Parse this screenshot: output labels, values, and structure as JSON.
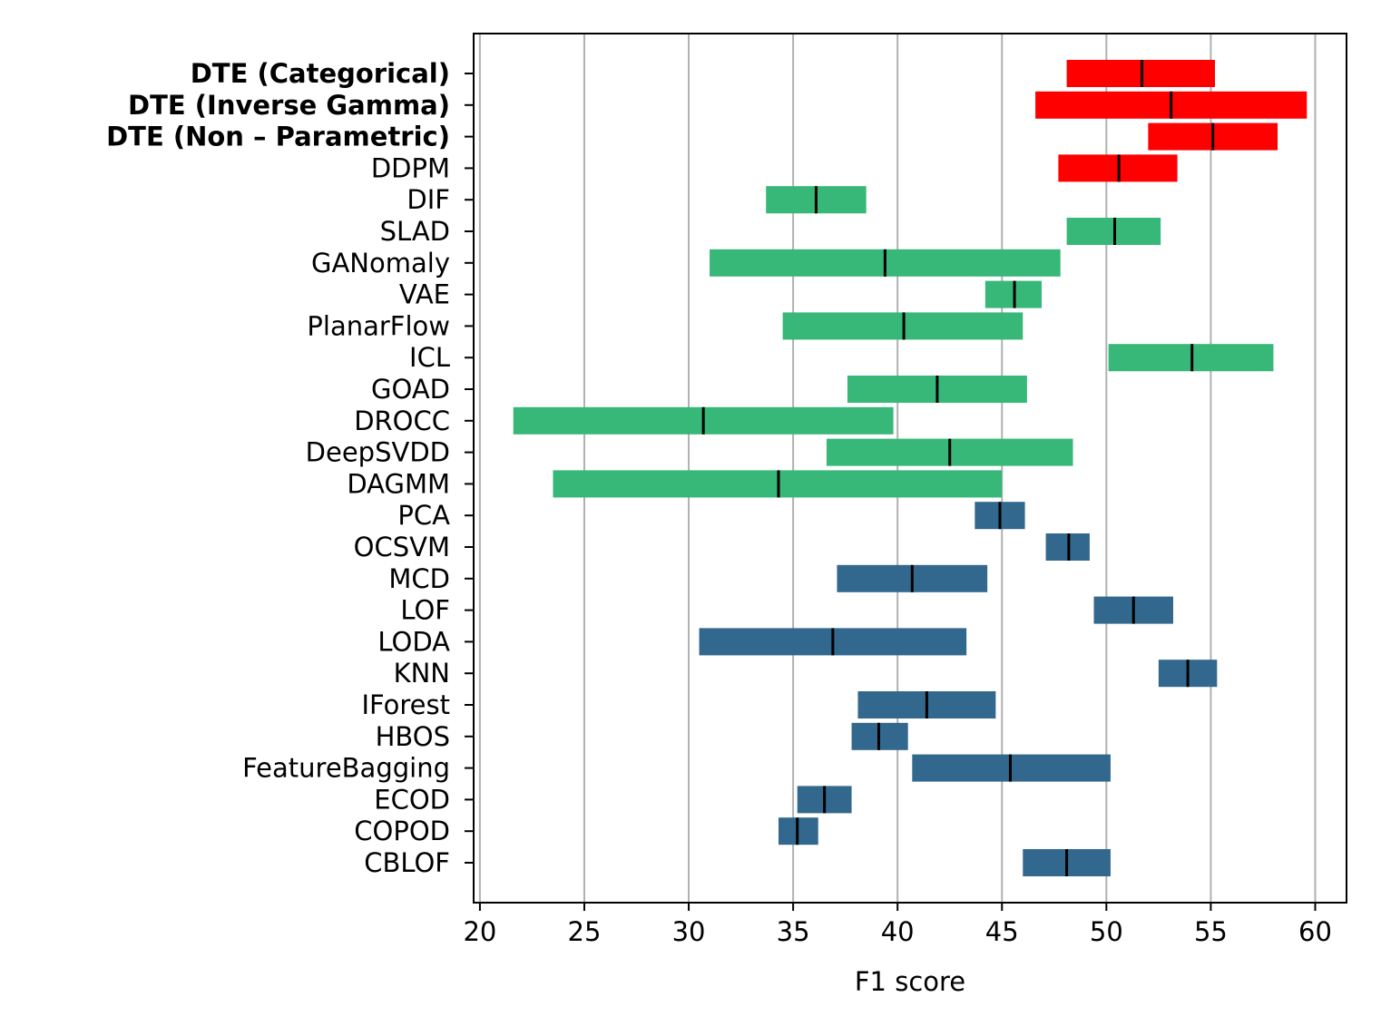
{
  "chart_data": {
    "type": "floating-bar",
    "orientation": "horizontal",
    "title": "",
    "xlabel": "F1 score",
    "ylabel": "",
    "xlim": [
      19.7,
      61.5
    ],
    "xticks": [
      20,
      25,
      30,
      35,
      40,
      45,
      50,
      55,
      60
    ],
    "grid": "vertical",
    "legend": "none",
    "colors": {
      "diffusion": "#ff0000",
      "deep": "#37b878",
      "classical": "#32688d",
      "median": "#000000",
      "grid": "#b0b0b0"
    },
    "series": [
      {
        "name": "DTE (Categorical)",
        "bold": true,
        "group": "diffusion",
        "low": 48.1,
        "high": 55.2,
        "median": 51.7
      },
      {
        "name": "DTE (Inverse Gamma)",
        "bold": true,
        "group": "diffusion",
        "low": 46.6,
        "high": 59.6,
        "median": 53.1
      },
      {
        "name": "DTE (Non – Parametric)",
        "bold": true,
        "group": "diffusion",
        "low": 52.0,
        "high": 58.2,
        "median": 55.1
      },
      {
        "name": "DDPM",
        "bold": false,
        "group": "diffusion",
        "low": 47.7,
        "high": 53.4,
        "median": 50.6
      },
      {
        "name": "DIF",
        "bold": false,
        "group": "deep",
        "low": 33.7,
        "high": 38.5,
        "median": 36.1
      },
      {
        "name": "SLAD",
        "bold": false,
        "group": "deep",
        "low": 48.1,
        "high": 52.6,
        "median": 50.4
      },
      {
        "name": "GANomaly",
        "bold": false,
        "group": "deep",
        "low": 31.0,
        "high": 47.8,
        "median": 39.4
      },
      {
        "name": "VAE",
        "bold": false,
        "group": "deep",
        "low": 44.2,
        "high": 46.9,
        "median": 45.6
      },
      {
        "name": "PlanarFlow",
        "bold": false,
        "group": "deep",
        "low": 34.5,
        "high": 46.0,
        "median": 40.3
      },
      {
        "name": "ICL",
        "bold": false,
        "group": "deep",
        "low": 50.1,
        "high": 58.0,
        "median": 54.1
      },
      {
        "name": "GOAD",
        "bold": false,
        "group": "deep",
        "low": 37.6,
        "high": 46.2,
        "median": 41.9
      },
      {
        "name": "DROCC",
        "bold": false,
        "group": "deep",
        "low": 21.6,
        "high": 39.8,
        "median": 30.7
      },
      {
        "name": "DeepSVDD",
        "bold": false,
        "group": "deep",
        "low": 36.6,
        "high": 48.4,
        "median": 42.5
      },
      {
        "name": "DAGMM",
        "bold": false,
        "group": "deep",
        "low": 23.5,
        "high": 45.0,
        "median": 34.3
      },
      {
        "name": "PCA",
        "bold": false,
        "group": "classical",
        "low": 43.7,
        "high": 46.1,
        "median": 44.9
      },
      {
        "name": "OCSVM",
        "bold": false,
        "group": "classical",
        "low": 47.1,
        "high": 49.2,
        "median": 48.2
      },
      {
        "name": "MCD",
        "bold": false,
        "group": "classical",
        "low": 37.1,
        "high": 44.3,
        "median": 40.7
      },
      {
        "name": "LOF",
        "bold": false,
        "group": "classical",
        "low": 49.4,
        "high": 53.2,
        "median": 51.3
      },
      {
        "name": "LODA",
        "bold": false,
        "group": "classical",
        "low": 30.5,
        "high": 43.3,
        "median": 36.9
      },
      {
        "name": "KNN",
        "bold": false,
        "group": "classical",
        "low": 52.5,
        "high": 55.3,
        "median": 53.9
      },
      {
        "name": "IForest",
        "bold": false,
        "group": "classical",
        "low": 38.1,
        "high": 44.7,
        "median": 41.4
      },
      {
        "name": "HBOS",
        "bold": false,
        "group": "classical",
        "low": 37.8,
        "high": 40.5,
        "median": 39.1
      },
      {
        "name": "FeatureBagging",
        "bold": false,
        "group": "classical",
        "low": 40.7,
        "high": 50.2,
        "median": 45.4
      },
      {
        "name": "ECOD",
        "bold": false,
        "group": "classical",
        "low": 35.2,
        "high": 37.8,
        "median": 36.5
      },
      {
        "name": "COPOD",
        "bold": false,
        "group": "classical",
        "low": 34.3,
        "high": 36.2,
        "median": 35.2
      },
      {
        "name": "CBLOF",
        "bold": false,
        "group": "classical",
        "low": 46.0,
        "high": 50.2,
        "median": 48.1
      }
    ]
  }
}
